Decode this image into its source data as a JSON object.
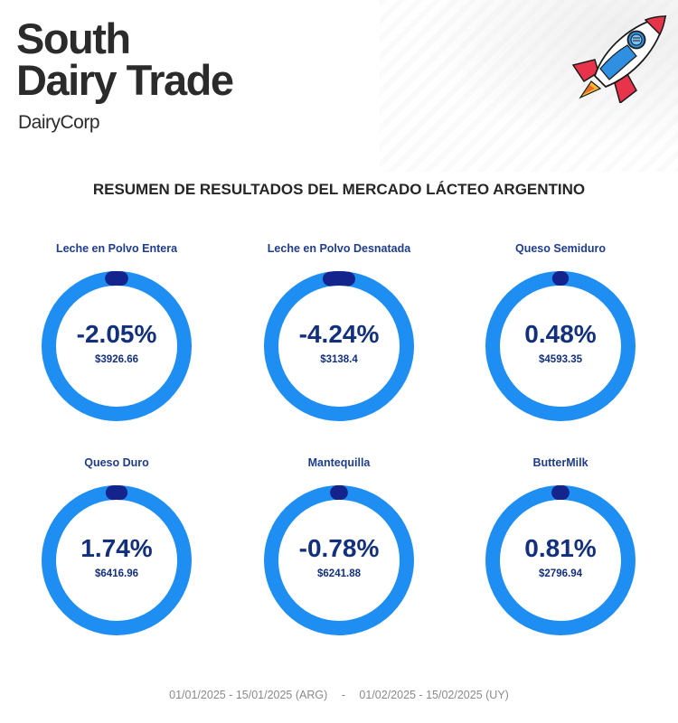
{
  "header": {
    "logo_line1": "South",
    "logo_line2": "Dairy Trade",
    "sub_logo": "DairyCorp",
    "illustration": "rocket-icon"
  },
  "main_title": "RESUMEN DE RESULTADOS DEL MERCADO LÁCTEO ARGENTINO",
  "chart_data": {
    "type": "donut",
    "items": [
      {
        "label": "Leche en Polvo Entera",
        "change": "-2.05%",
        "change_value": -2.05,
        "price": "$3926.66"
      },
      {
        "label": "Leche en Polvo Desnatada",
        "change": "-4.24%",
        "change_value": -4.24,
        "price": "$3138.4"
      },
      {
        "label": "Queso Semiduro",
        "change": "0.48%",
        "change_value": 0.48,
        "price": "$4593.35"
      },
      {
        "label": "Queso Duro",
        "change": "1.74%",
        "change_value": 1.74,
        "price": "$6416.96"
      },
      {
        "label": "Mantequilla",
        "change": "-0.78%",
        "change_value": -0.78,
        "price": "$6241.88"
      },
      {
        "label": "ButterMilk",
        "change": "0.81%",
        "change_value": 0.81,
        "price": "$2796.94"
      }
    ],
    "colors": {
      "ring": "#1e8ef2",
      "marker": "#13248c",
      "text": "#12307c"
    }
  },
  "footer": {
    "range_arg": "01/01/2025 - 15/01/2025 (ARG)",
    "separator": "-",
    "range_uy": "01/02/2025 - 15/02/2025 (UY)"
  }
}
